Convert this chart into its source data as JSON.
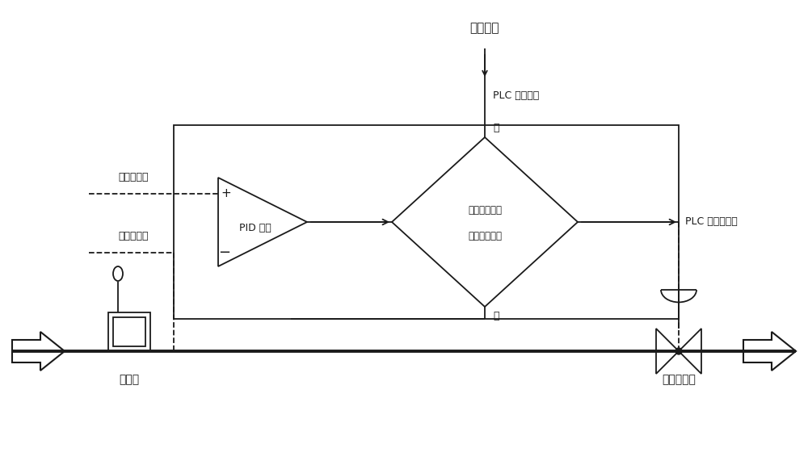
{
  "bg_color": "#ffffff",
  "line_color": "#1a1a1a",
  "text_color": "#1a1a1a",
  "fig_width": 10.0,
  "fig_height": 5.76,
  "dpi": 100,
  "alarm_label": "报警提示",
  "plc_digital_label": "PLC 数字输出",
  "plc_analog_label": "PLC 模拟量输出",
  "flow_setpoint_label": "流量设定值",
  "flow_reading_label": "流量计读数",
  "flowmeter_label": "流量计",
  "valve_label": "流量调节阀",
  "pid_label": "PID 运算",
  "diamond_line1": "在调节周期内",
  "diamond_line2": "超过设定偏差",
  "yes_label": "是",
  "no_label": "否",
  "plus_label": "+",
  "minus_label": "−"
}
